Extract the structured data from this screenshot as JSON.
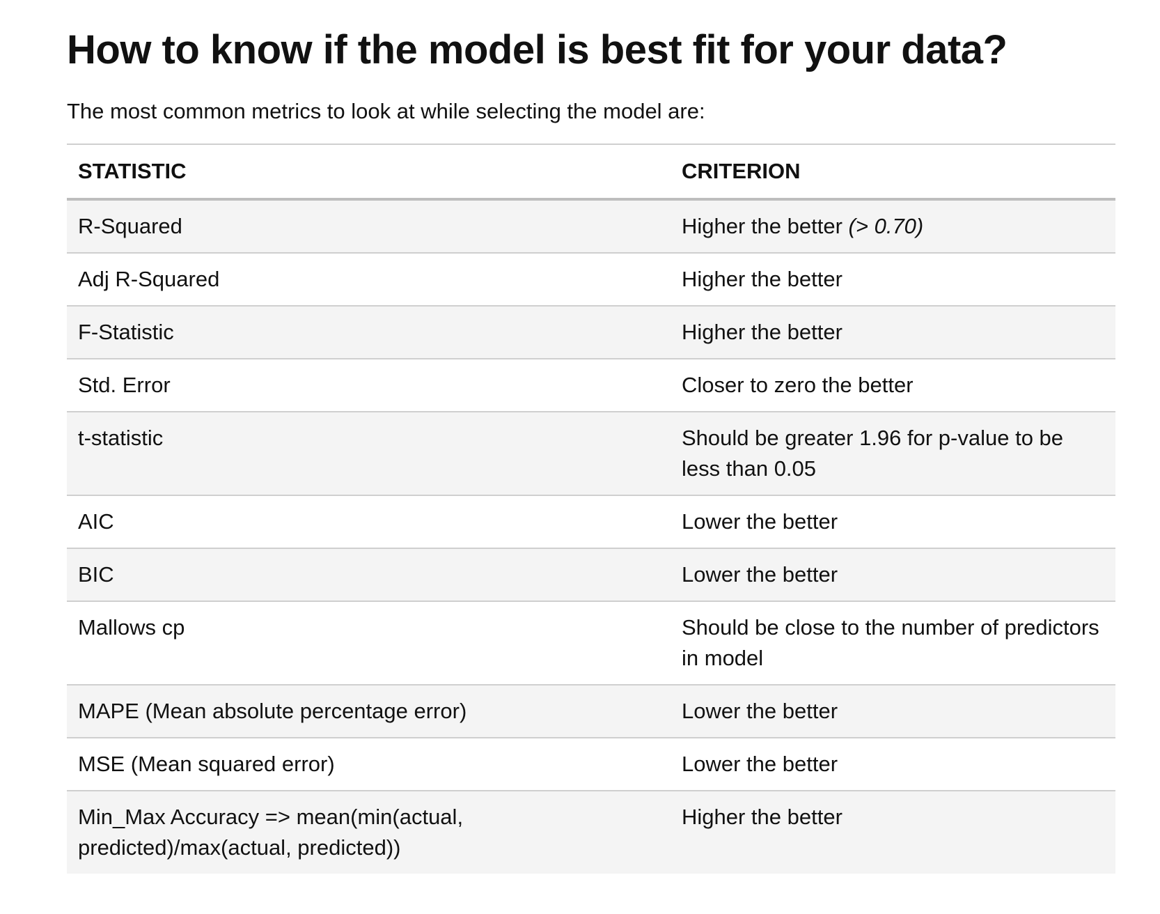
{
  "heading": "How to know if the model is best fit for your data?",
  "intro": "The most common metrics to look at while selecting the model are:",
  "table": {
    "headers": [
      "STATISTIC",
      "CRITERION"
    ],
    "rows": [
      {
        "statistic": "R-Squared",
        "criterion": "Higher the better",
        "note": "(> 0.70)"
      },
      {
        "statistic": "Adj R-Squared",
        "criterion": "Higher the better",
        "note": ""
      },
      {
        "statistic": "F-Statistic",
        "criterion": "Higher the better",
        "note": ""
      },
      {
        "statistic": "Std. Error",
        "criterion": "Closer to zero the better",
        "note": ""
      },
      {
        "statistic": "t-statistic",
        "criterion": "Should be greater 1.96 for p-value to be less than 0.05",
        "note": ""
      },
      {
        "statistic": "AIC",
        "criterion": "Lower the better",
        "note": ""
      },
      {
        "statistic": "BIC",
        "criterion": "Lower the better",
        "note": ""
      },
      {
        "statistic": "Mallows cp",
        "criterion": "Should be close to the number of predictors in model",
        "note": ""
      },
      {
        "statistic": "MAPE (Mean absolute percentage error)",
        "criterion": "Lower the better",
        "note": ""
      },
      {
        "statistic": "MSE (Mean squared error)",
        "criterion": "Lower the better",
        "note": ""
      },
      {
        "statistic": "Min_Max Accuracy => mean(min(actual, predicted)/max(actual, predicted))",
        "criterion": "Higher the better",
        "note": ""
      }
    ]
  }
}
